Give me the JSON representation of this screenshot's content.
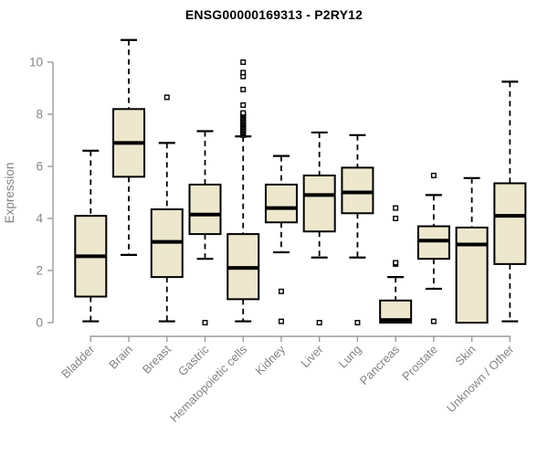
{
  "chart_data": {
    "type": "box",
    "title": "ENSG00000169313 - P2RY12",
    "ylabel": "Expression",
    "xlabel": "",
    "ylim": [
      0,
      10
    ],
    "yticks": [
      0,
      2,
      4,
      6,
      8,
      10
    ],
    "grid": false,
    "legend": false,
    "categories": [
      "Bladder",
      "Brain",
      "Breast",
      "Gastric",
      "Hematopoietic cells",
      "Kidney",
      "Liver",
      "Lung",
      "Pancreas",
      "Prostate",
      "Skin",
      "Unknown / Other"
    ],
    "series": [
      {
        "name": "Bladder",
        "whisker_low": 0.05,
        "q1": 1.0,
        "median": 2.55,
        "q3": 4.1,
        "whisker_high": 6.6,
        "outliers": []
      },
      {
        "name": "Brain",
        "whisker_low": 2.6,
        "q1": 5.6,
        "median": 6.9,
        "q3": 8.2,
        "whisker_high": 10.85,
        "outliers": []
      },
      {
        "name": "Breast",
        "whisker_low": 0.05,
        "q1": 1.75,
        "median": 3.1,
        "q3": 4.35,
        "whisker_high": 6.9,
        "outliers": [
          8.65
        ]
      },
      {
        "name": "Gastric",
        "whisker_low": 2.45,
        "q1": 3.4,
        "median": 4.15,
        "q3": 5.3,
        "whisker_high": 7.35,
        "outliers": [
          0.0
        ]
      },
      {
        "name": "Hematopoietic cells",
        "whisker_low": 0.05,
        "q1": 0.9,
        "median": 2.1,
        "q3": 3.4,
        "whisker_high": 7.15,
        "outliers": [
          7.2,
          7.25,
          7.3,
          7.35,
          7.4,
          7.45,
          7.5,
          7.55,
          7.6,
          7.65,
          7.7,
          7.75,
          7.8,
          7.85,
          7.9,
          7.95,
          8.0,
          8.05,
          8.35,
          8.95,
          9.45,
          9.6,
          10.0
        ]
      },
      {
        "name": "Kidney",
        "whisker_low": 2.7,
        "q1": 3.85,
        "median": 4.4,
        "q3": 5.3,
        "whisker_high": 6.4,
        "outliers": [
          1.2,
          0.05
        ]
      },
      {
        "name": "Liver",
        "whisker_low": 2.5,
        "q1": 3.5,
        "median": 4.9,
        "q3": 5.65,
        "whisker_high": 7.3,
        "outliers": [
          0.0
        ]
      },
      {
        "name": "Lung",
        "whisker_low": 2.5,
        "q1": 4.2,
        "median": 5.0,
        "q3": 5.95,
        "whisker_high": 7.2,
        "outliers": [
          0.0
        ]
      },
      {
        "name": "Pancreas",
        "whisker_low": 0.0,
        "q1": 0.0,
        "median": 0.1,
        "q3": 0.85,
        "whisker_high": 1.75,
        "outliers": [
          2.25,
          2.3,
          4.0,
          4.4
        ]
      },
      {
        "name": "Prostate",
        "whisker_low": 1.3,
        "q1": 2.45,
        "median": 3.15,
        "q3": 3.7,
        "whisker_high": 4.9,
        "outliers": [
          5.65,
          0.05
        ]
      },
      {
        "name": "Skin",
        "whisker_low": 0.0,
        "q1": 0.0,
        "median": 3.0,
        "q3": 3.65,
        "whisker_high": 5.55,
        "outliers": []
      },
      {
        "name": "Unknown / Other",
        "whisker_low": 0.05,
        "q1": 2.25,
        "median": 4.1,
        "q3": 5.35,
        "whisker_high": 9.25,
        "outliers": []
      }
    ],
    "colors": {
      "box_fill": "#ede7ce",
      "box_border": "#000000",
      "median": "#000000",
      "whisker": "#000000",
      "outlier_fill": "#ffffff",
      "axis": "#9b9b9b",
      "tick_label": "#848484",
      "title": "#000000",
      "background": "#ffffff"
    }
  }
}
